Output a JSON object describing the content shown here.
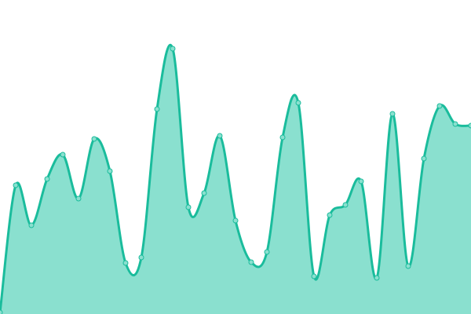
{
  "chart_data": {
    "type": "area",
    "title": "",
    "xlabel": "",
    "ylabel": "",
    "x": [
      0,
      1,
      2,
      3,
      4,
      5,
      6,
      7,
      8,
      9,
      10,
      11,
      12,
      13,
      14,
      15,
      16,
      17,
      18,
      19,
      20,
      21,
      22,
      23,
      24,
      25,
      26,
      27,
      28,
      29,
      30
    ],
    "values": [
      2,
      164,
      113,
      172,
      203,
      147,
      223,
      182,
      65,
      72,
      261,
      338,
      136,
      154,
      227,
      119,
      66,
      79,
      225,
      269,
      48,
      126,
      139,
      169,
      46,
      255,
      61,
      198,
      265,
      242,
      240
    ],
    "ylim": [
      0,
      400
    ],
    "grid": false,
    "axes_visible": false,
    "smooth": true,
    "colors": {
      "line": "#1abc9c",
      "fill": "#8ae0cf",
      "marker_fill": "#8ae0cf"
    }
  }
}
